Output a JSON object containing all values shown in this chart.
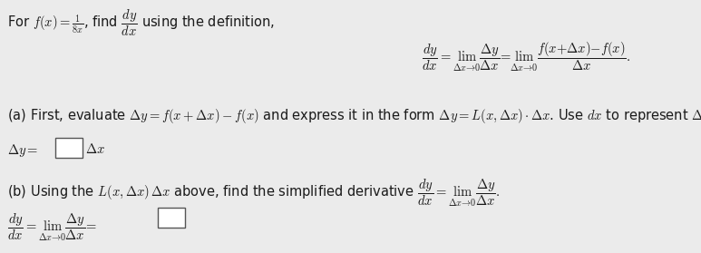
{
  "background_color": "#ebebeb",
  "text_color": "#1a1a1a",
  "font_size": 10.5,
  "line1": "For $f(x) = \\frac{1}{8x}$, find $\\dfrac{dy}{dx}$ using the definition,",
  "def_eq": "$\\dfrac{dy}{dx} = \\lim_{\\Delta x \\to 0} \\dfrac{\\Delta y}{\\Delta x} = \\lim_{\\Delta x \\to 0} \\dfrac{f(x + \\Delta x) - f(x)}{\\Delta x}.$",
  "part_a": "(a) First, evaluate $\\Delta y = f(x + \\Delta x) - f(x)$ and express it in the form $\\Delta y = L(x, \\Delta x) \\cdot \\Delta x$. Use $dx$ to represent $\\Delta x$.",
  "delta_y_label": "$\\Delta y = $",
  "delta_x_label": "$\\Delta x$",
  "part_b": "(b) Using the $L(x, \\Delta x)\\, \\Delta x$ above, find the simplified derivative $\\dfrac{dy}{dx} = \\lim_{\\Delta x \\to 0} \\dfrac{\\Delta y}{\\Delta x}.$",
  "part_b_eq": "$\\dfrac{dy}{dx} = \\lim_{\\Delta x \\to 0} \\dfrac{\\Delta y}{\\Delta x} = $"
}
